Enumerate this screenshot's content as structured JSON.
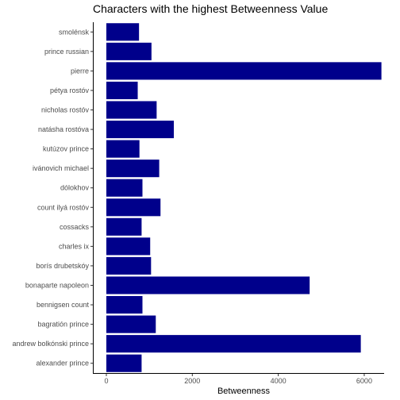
{
  "chart_data": {
    "type": "bar",
    "orientation": "horizontal",
    "title": "Characters with the highest Betweenness Value",
    "xlabel": "Betweenness",
    "ylabel": "",
    "xlim": [
      0,
      6400
    ],
    "xticks": [
      0,
      2000,
      4000,
      6000
    ],
    "xtick_labels": [
      "0",
      "2000",
      "4000",
      "6000"
    ],
    "grid": false,
    "legend": "none",
    "bar_color": "#00008B",
    "categories": [
      "smolénsk",
      "prince russian",
      "pierre",
      "pétya rostóv",
      "nicholas rostóv",
      "natásha rostóva",
      "kutúzov prince",
      "ivánovich michael",
      "dólokhov",
      "count ilyá rostóv",
      "cossacks",
      "charles ix",
      "borís drubetskóy",
      "bonaparte napoleon",
      "bennigsen count",
      "bagratión prince",
      "andrew bolkónski prince",
      "alexander prince"
    ],
    "values": [
      760,
      1050,
      6400,
      730,
      1170,
      1570,
      770,
      1230,
      840,
      1260,
      820,
      1020,
      1040,
      4730,
      840,
      1150,
      5920,
      820
    ]
  }
}
